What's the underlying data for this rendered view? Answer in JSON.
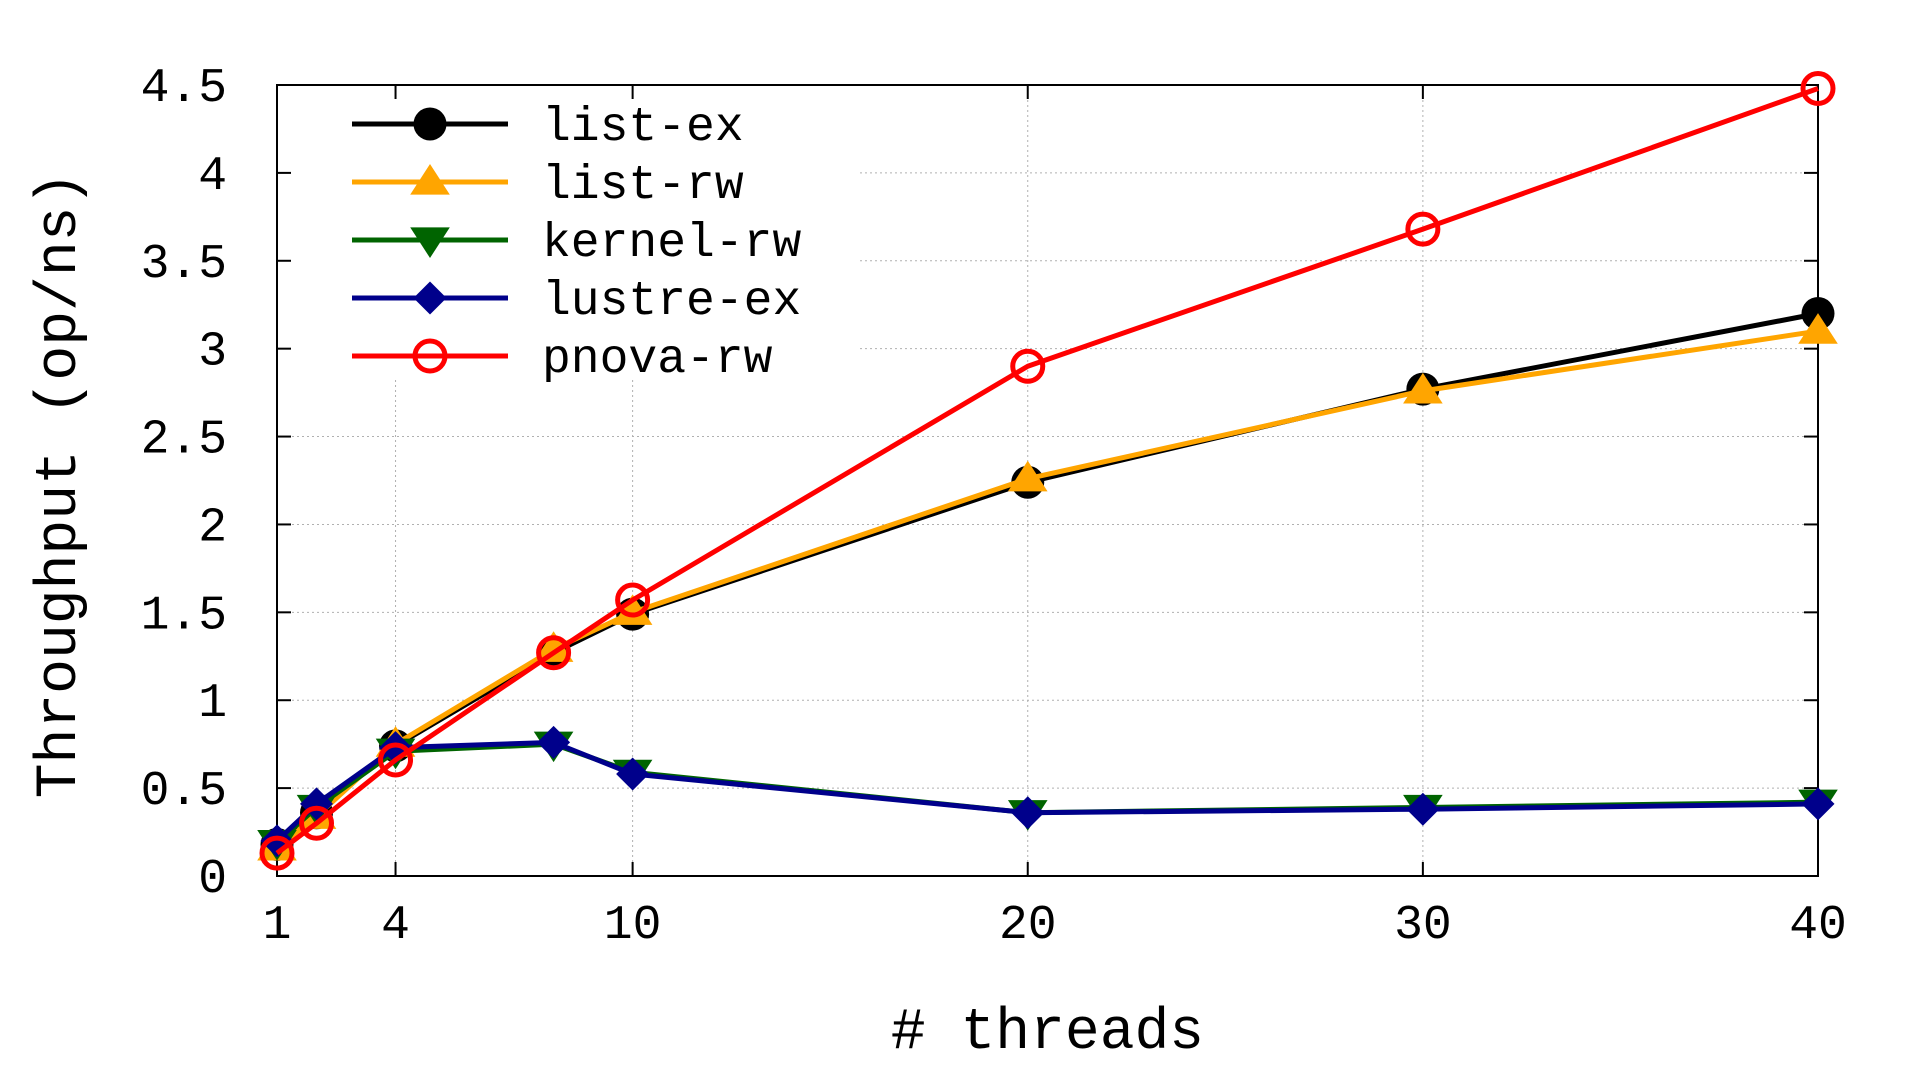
{
  "chart_data": {
    "type": "line",
    "title": "",
    "xlabel": "# threads",
    "ylabel": "Throughput (op/ns)",
    "xlim": [
      1,
      40
    ],
    "ylim": [
      0,
      4.5
    ],
    "xticks": [
      1,
      4,
      10,
      20,
      30,
      40
    ],
    "xtick_labels": [
      "1",
      "4",
      "10",
      "20",
      "30",
      "40"
    ],
    "yticks": [
      0,
      0.5,
      1,
      1.5,
      2,
      2.5,
      3,
      3.5,
      4,
      4.5
    ],
    "ytick_labels": [
      "0",
      "0.5",
      "1",
      "1.5",
      "2",
      "2.5",
      "3",
      "3.5",
      "4",
      "4.5"
    ],
    "grid": true,
    "legend_position": "top-left",
    "series": [
      {
        "name": "list-ex",
        "color": "#000000",
        "marker": "circle-filled",
        "x": [
          1,
          2,
          4,
          8,
          10,
          20,
          30,
          40
        ],
        "y": [
          0.18,
          0.36,
          0.74,
          1.27,
          1.49,
          2.24,
          2.77,
          3.2
        ]
      },
      {
        "name": "list-rw",
        "color": "#ffa500",
        "marker": "triangle-up",
        "x": [
          1,
          2,
          4,
          8,
          10,
          20,
          30,
          40
        ],
        "y": [
          0.16,
          0.34,
          0.75,
          1.29,
          1.5,
          2.26,
          2.76,
          3.1
        ]
      },
      {
        "name": "kernel-rw",
        "color": "#006400",
        "marker": "triangle-down",
        "x": [
          1,
          2,
          4,
          8,
          10,
          20,
          30,
          40
        ],
        "y": [
          0.19,
          0.39,
          0.71,
          0.75,
          0.59,
          0.36,
          0.39,
          0.42
        ]
      },
      {
        "name": "lustre-ex",
        "color": "#00008b",
        "marker": "diamond",
        "x": [
          1,
          2,
          4,
          8,
          10,
          20,
          30,
          40
        ],
        "y": [
          0.2,
          0.41,
          0.73,
          0.76,
          0.58,
          0.36,
          0.38,
          0.41
        ]
      },
      {
        "name": "pnova-rw",
        "color": "#ff0000",
        "marker": "circle-open",
        "x": [
          1,
          2,
          4,
          8,
          10,
          20,
          30,
          40
        ],
        "y": [
          0.13,
          0.3,
          0.66,
          1.27,
          1.57,
          2.9,
          3.68,
          4.48
        ]
      }
    ]
  }
}
